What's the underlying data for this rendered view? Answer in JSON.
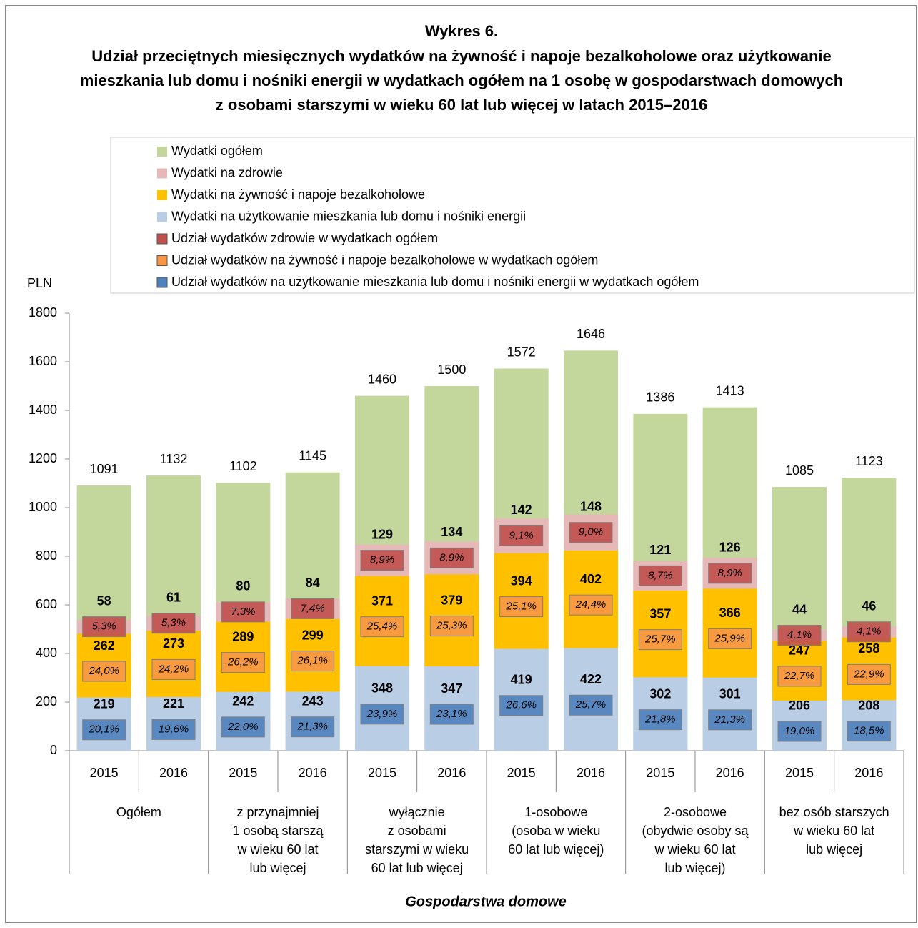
{
  "chart_data": {
    "type": "bar",
    "title": "Wykres 6.",
    "subtitle": [
      "Udział przeciętnych miesięcznych wydatków na żywność i napoje bezalkoholowe oraz użytkowanie",
      "mieszkania lub domu i nośniki energii w wydatkach ogółem na 1 osobę w gospodarstwach domowych",
      "z osobami starszymi w wieku 60 lat lub więcej w latach 2015–2016"
    ],
    "y_label": "PLN",
    "x_label": "Gospodarstwa domowe",
    "categories": [
      "2015",
      "2016",
      "2015",
      "2016",
      "2015",
      "2016",
      "2015",
      "2016",
      "2015",
      "2016",
      "2015",
      "2016"
    ],
    "groups": [
      {
        "label_lines": [
          "Ogółem"
        ]
      },
      {
        "label_lines": [
          "z przynajmniej",
          "1 osobą starszą",
          "w wieku 60 lat",
          "lub więcej"
        ]
      },
      {
        "label_lines": [
          "wyłącznie",
          "z osobami",
          "starszymi w wieku",
          "60 lat lub więcej"
        ]
      },
      {
        "label_lines": [
          "1-osobowe",
          "(osoba w wieku",
          "60 lat lub więcej)"
        ]
      },
      {
        "label_lines": [
          "2-osobowe",
          "(obydwie osoby są",
          "w wieku 60 lat",
          "lub więcej)"
        ]
      },
      {
        "label_lines": [
          "bez osób starszych",
          "w wieku 60 lat",
          "lub więcej"
        ]
      }
    ],
    "series": [
      {
        "name": "Wydatki ogółem",
        "color": "#c3d69b",
        "values": [
          1091,
          1132,
          1102,
          1145,
          1460,
          1500,
          1572,
          1646,
          1386,
          1413,
          1085,
          1123
        ]
      },
      {
        "name": "Wydatki na zdrowie",
        "color": "#e6b9b8",
        "values": [
          58,
          61,
          80,
          84,
          129,
          134,
          142,
          148,
          121,
          126,
          44,
          46
        ]
      },
      {
        "name": "Wydatki na żywność i napoje bezalkoholowe",
        "color": "#ffc000",
        "values": [
          262,
          273,
          289,
          299,
          371,
          379,
          394,
          402,
          357,
          366,
          247,
          258
        ]
      },
      {
        "name": "Wydatki na użytkowanie mieszkania lub domu i nośniki energii",
        "color": "#b9cde5",
        "values": [
          219,
          221,
          242,
          243,
          348,
          347,
          419,
          422,
          302,
          301,
          206,
          208
        ]
      },
      {
        "name": "Udział wydatków zdrowie w wydatkach ogółem",
        "color": "#c0504d",
        "values": [
          5.3,
          5.3,
          7.3,
          7.4,
          8.9,
          8.9,
          9.1,
          9.0,
          8.7,
          8.9,
          4.1,
          4.1
        ],
        "value_labels": [
          "5,3%",
          "5,3%",
          "7,3%",
          "7,4%",
          "8,9%",
          "8,9%",
          "9,1%",
          "9,0%",
          "8,7%",
          "8,9%",
          "4,1%",
          "4,1%"
        ]
      },
      {
        "name": "Udział wydatków na żywność i napoje bezalkoholowe w wydatkach ogółem",
        "color": "#f79646",
        "values": [
          24.0,
          24.2,
          26.2,
          26.1,
          25.4,
          25.3,
          25.1,
          24.4,
          25.7,
          25.9,
          22.7,
          22.9
        ],
        "value_labels": [
          "24,0%",
          "24,2%",
          "26,2%",
          "26,1%",
          "25,4%",
          "25,3%",
          "25,1%",
          "24,4%",
          "25,7%",
          "25,9%",
          "22,7%",
          "22,9%"
        ]
      },
      {
        "name": "Udział wydatków na użytkowanie mieszkania lub domu i nośniki energii w wydatkach ogółem",
        "color": "#4f81bd",
        "values": [
          20.1,
          19.6,
          22.0,
          21.3,
          23.9,
          23.1,
          26.6,
          25.7,
          21.8,
          21.3,
          19.0,
          18.5
        ],
        "value_labels": [
          "20,1%",
          "19,6%",
          "22,0%",
          "21,3%",
          "23,9%",
          "23,1%",
          "26,6%",
          "25,7%",
          "21,8%",
          "21,3%",
          "19,0%",
          "18,5%"
        ]
      }
    ],
    "ylim": [
      0,
      1800
    ],
    "yticks": [
      0,
      200,
      400,
      600,
      800,
      1000,
      1200,
      1400,
      1600,
      1800
    ]
  }
}
